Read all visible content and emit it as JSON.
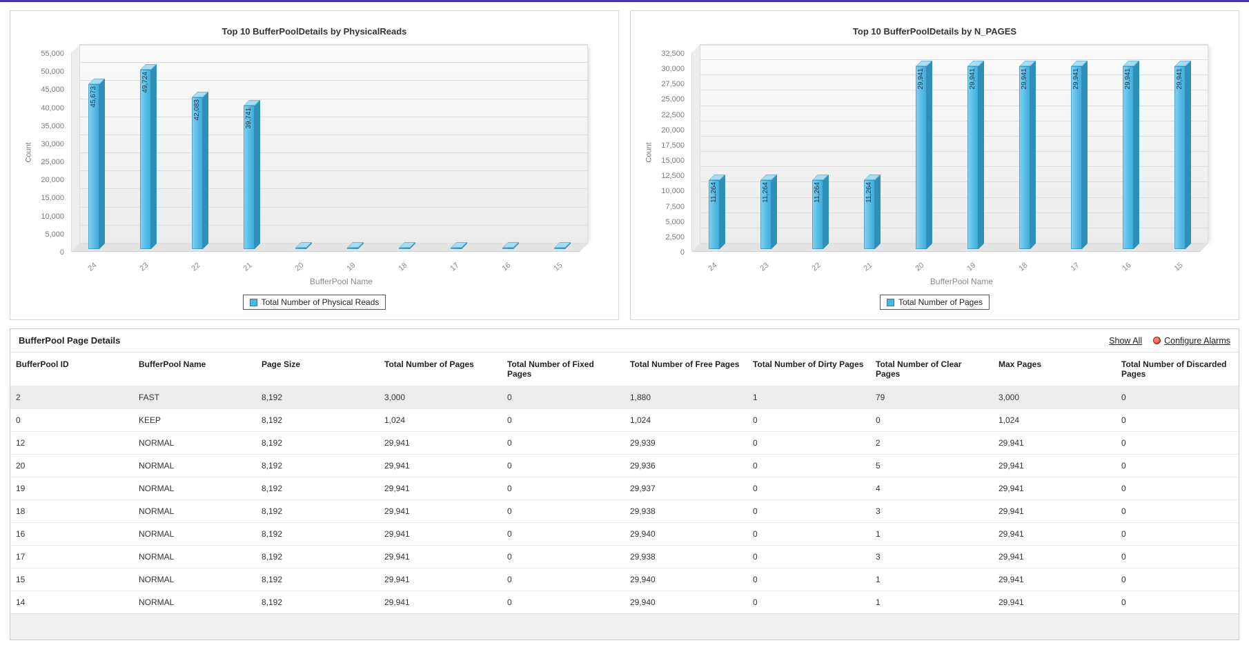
{
  "chart_data": [
    {
      "type": "bar",
      "title": "Top 10 BufferPoolDetails by PhysicalReads",
      "xlabel": "BufferPool Name",
      "ylabel": "Count",
      "legend": "Total Number of Physical Reads",
      "categories": [
        "24",
        "23",
        "22",
        "21",
        "20",
        "19",
        "18",
        "17",
        "16",
        "15"
      ],
      "values": [
        45673,
        49724,
        42083,
        39741,
        0,
        0,
        0,
        0,
        0,
        0
      ],
      "ylim": [
        0,
        55000
      ],
      "ystep": 5000,
      "bar_color": "#45b8e8",
      "grid": true,
      "legend_position": "bottom"
    },
    {
      "type": "bar",
      "title": "Top 10 BufferPoolDetails by N_PAGES",
      "xlabel": "BufferPool Name",
      "ylabel": "Count",
      "legend": "Total Number of Pages",
      "categories": [
        "24",
        "23",
        "22",
        "21",
        "20",
        "19",
        "18",
        "17",
        "16",
        "15"
      ],
      "values": [
        11264,
        11264,
        11264,
        11264,
        29941,
        29941,
        29941,
        29941,
        29941,
        29941
      ],
      "ylim": [
        0,
        32500
      ],
      "ystep": 2500,
      "bar_color": "#45b8e8",
      "grid": true,
      "legend_position": "bottom"
    }
  ],
  "table": {
    "title": "BufferPool Page Details",
    "show_all_label": "Show All",
    "configure_alarms_label": "Configure Alarms",
    "columns": [
      "BufferPool ID",
      "BufferPool Name",
      "Page Size",
      "Total Number of Pages",
      "Total Number of Fixed Pages",
      "Total Number of Free Pages",
      "Total Number of Dirty Pages",
      "Total Number of Clear Pages",
      "Max Pages",
      "Total Number of Discarded Pages"
    ],
    "rows": [
      [
        "2",
        "FAST",
        "8,192",
        "3,000",
        "0",
        "1,880",
        "1",
        "79",
        "3,000",
        "0"
      ],
      [
        "0",
        "KEEP",
        "8,192",
        "1,024",
        "0",
        "1,024",
        "0",
        "0",
        "1,024",
        "0"
      ],
      [
        "12",
        "NORMAL",
        "8,192",
        "29,941",
        "0",
        "29,939",
        "0",
        "2",
        "29,941",
        "0"
      ],
      [
        "20",
        "NORMAL",
        "8,192",
        "29,941",
        "0",
        "29,936",
        "0",
        "5",
        "29,941",
        "0"
      ],
      [
        "19",
        "NORMAL",
        "8,192",
        "29,941",
        "0",
        "29,937",
        "0",
        "4",
        "29,941",
        "0"
      ],
      [
        "18",
        "NORMAL",
        "8,192",
        "29,941",
        "0",
        "29,938",
        "0",
        "3",
        "29,941",
        "0"
      ],
      [
        "16",
        "NORMAL",
        "8,192",
        "29,941",
        "0",
        "29,940",
        "0",
        "1",
        "29,941",
        "0"
      ],
      [
        "17",
        "NORMAL",
        "8,192",
        "29,941",
        "0",
        "29,938",
        "0",
        "3",
        "29,941",
        "0"
      ],
      [
        "15",
        "NORMAL",
        "8,192",
        "29,941",
        "0",
        "29,940",
        "0",
        "1",
        "29,941",
        "0"
      ],
      [
        "14",
        "NORMAL",
        "8,192",
        "29,941",
        "0",
        "29,940",
        "0",
        "1",
        "29,941",
        "0"
      ]
    ]
  },
  "colors": {
    "accent_bar": "#45b8e8",
    "top_line": "#4c35a0",
    "row_highlight": "#ececec"
  }
}
